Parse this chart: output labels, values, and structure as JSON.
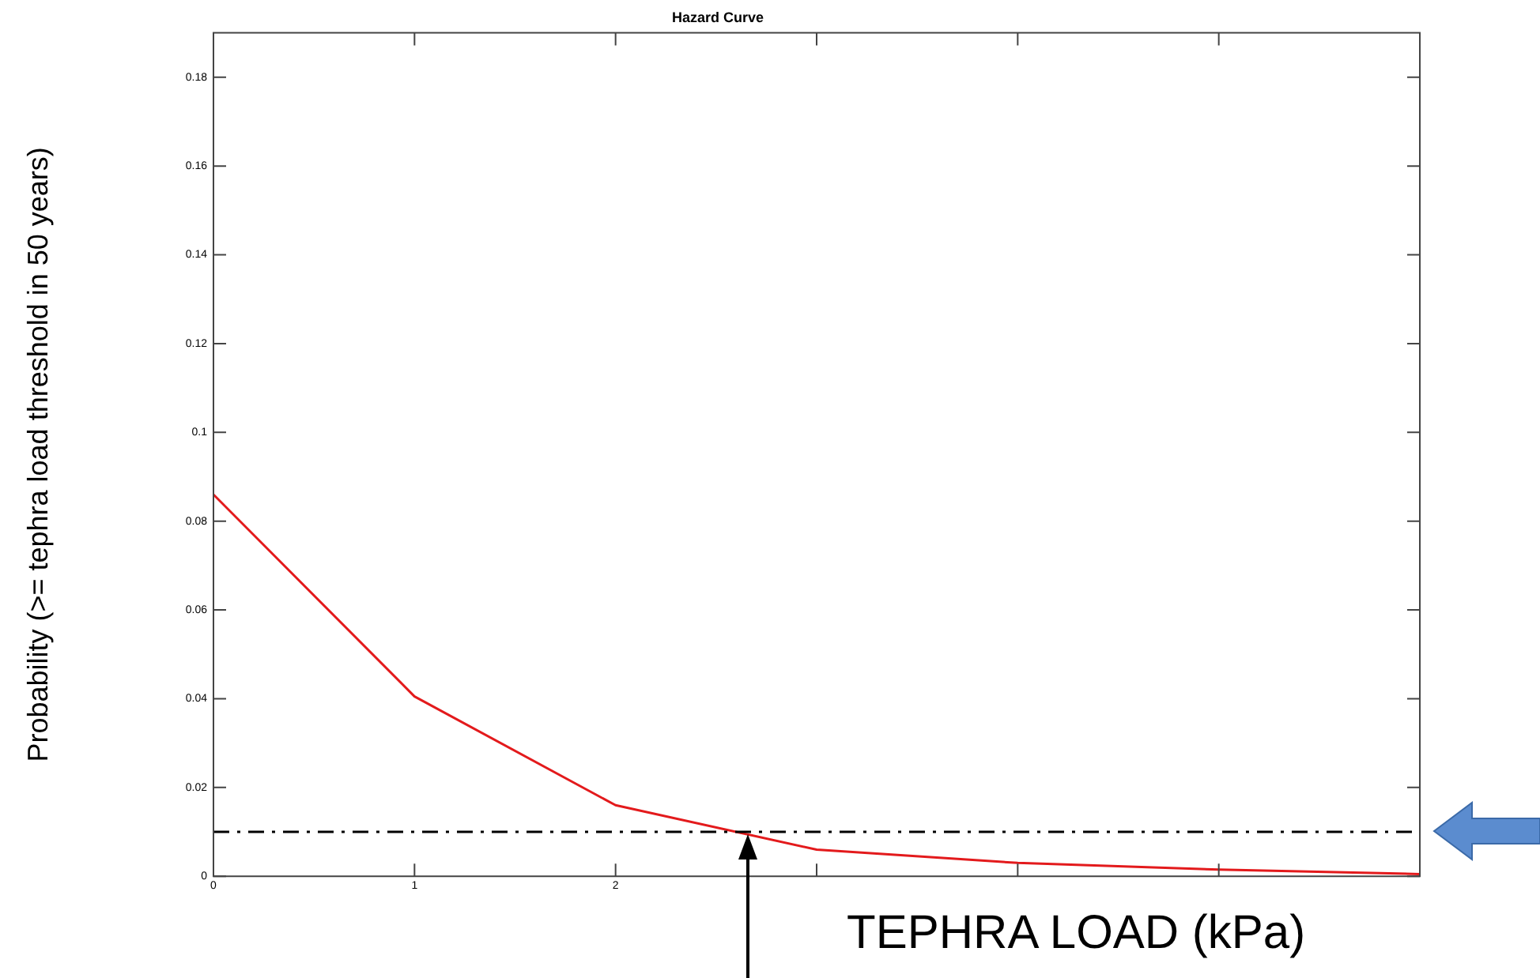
{
  "chart_data": {
    "type": "line",
    "title": "Hazard Curve",
    "xlabel": "TEPHRA LOAD (kPa)",
    "ylabel": "Probability (>= tephra load threshold in 50 years)",
    "x": [
      0,
      1,
      2,
      3,
      4,
      5,
      6
    ],
    "series": [
      {
        "color": "#e31a1c",
        "values": [
          0.086,
          0.0405,
          0.016,
          0.006,
          0.003,
          0.0015,
          0.0005
        ]
      }
    ],
    "xlim": [
      0,
      6
    ],
    "xticks": [
      0,
      1,
      2,
      {
        "value": 3,
        "label": null
      },
      {
        "value": 4,
        "label": null
      },
      {
        "value": 5,
        "label": null
      }
    ],
    "ylim": [
      0,
      0.19
    ],
    "yticks": [
      0,
      0.02,
      0.04,
      0.06,
      0.08,
      0.1,
      0.12,
      0.14,
      0.16,
      0.18
    ],
    "ref_lines": [
      {
        "axis": "y",
        "value": 0.01,
        "color": "#000000",
        "line_style": "dashdot"
      }
    ],
    "grid": false,
    "legend": false,
    "marker": "none",
    "line_style": "solid"
  }
}
